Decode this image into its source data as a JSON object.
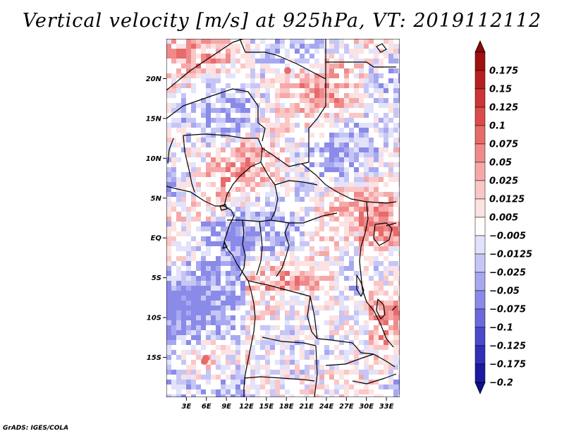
{
  "title": "Vertical velocity [m/s] at 925hPa, VT: 2019112112",
  "footer": "GrADS: IGES/COLA",
  "map": {
    "lat_range": [
      -20,
      25
    ],
    "lon_range": [
      0,
      35
    ],
    "lat_ticks": [
      {
        "value": 20,
        "label": "20N"
      },
      {
        "value": 15,
        "label": "15N"
      },
      {
        "value": 10,
        "label": "10N"
      },
      {
        "value": 5,
        "label": "5N"
      },
      {
        "value": 0,
        "label": "EQ"
      },
      {
        "value": -5,
        "label": "5S"
      },
      {
        "value": -10,
        "label": "10S"
      },
      {
        "value": -15,
        "label": "15S"
      }
    ],
    "lon_ticks": [
      {
        "value": 3,
        "label": "3E"
      },
      {
        "value": 6,
        "label": "6E"
      },
      {
        "value": 9,
        "label": "9E"
      },
      {
        "value": 12,
        "label": "12E"
      },
      {
        "value": 15,
        "label": "15E"
      },
      {
        "value": 18,
        "label": "18E"
      },
      {
        "value": 21,
        "label": "21E"
      },
      {
        "value": 24,
        "label": "24E"
      },
      {
        "value": 27,
        "label": "27E"
      },
      {
        "value": 30,
        "label": "30E"
      },
      {
        "value": 33,
        "label": "33E"
      }
    ]
  },
  "colorbar": {
    "levels": [
      {
        "label": "0.175",
        "color": "#a01010"
      },
      {
        "label": "0.15",
        "color": "#b82020"
      },
      {
        "label": "0.125",
        "color": "#cc3535"
      },
      {
        "label": "0.1",
        "color": "#dd4a4a"
      },
      {
        "label": "0.075",
        "color": "#e86a6a"
      },
      {
        "label": "0.05",
        "color": "#f08a8a"
      },
      {
        "label": "0.025",
        "color": "#f6a8a8"
      },
      {
        "label": "0.0125",
        "color": "#fbc6c6"
      },
      {
        "label": "0.005",
        "color": "#fde2e2"
      },
      {
        "label": "−0.005",
        "color": "#ffffff"
      },
      {
        "label": "−0.0125",
        "color": "#e2e2fb"
      },
      {
        "label": "−0.025",
        "color": "#c6c6f6"
      },
      {
        "label": "−0.05",
        "color": "#a8a8f0"
      },
      {
        "label": "−0.075",
        "color": "#8a8ae8"
      },
      {
        "label": "−0.1",
        "color": "#6a6add"
      },
      {
        "label": "−0.125",
        "color": "#4a4acc"
      },
      {
        "label": "−0.175",
        "color": "#3030b8"
      },
      {
        "label": "−0.2",
        "color": "#1a1aa0"
      }
    ],
    "top_color": "#8b0a0a",
    "bottom_color": "#10108a"
  }
}
